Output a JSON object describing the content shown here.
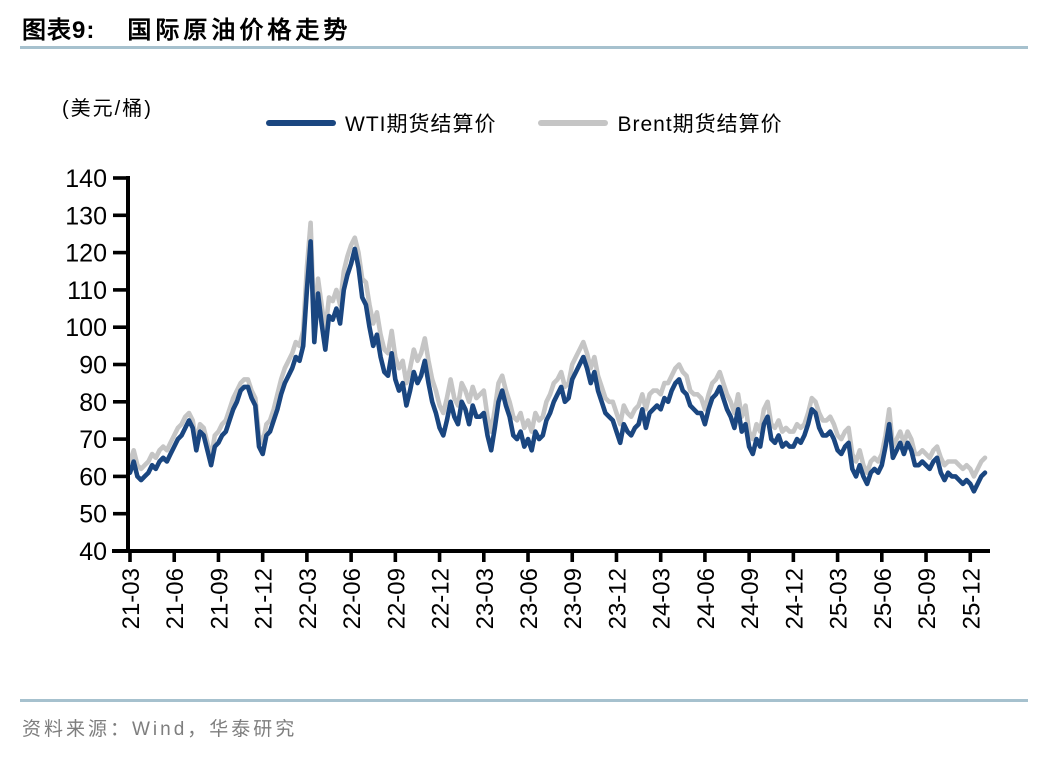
{
  "header": {
    "chart_label": "图表9:",
    "chart_title": "国际原油价格走势"
  },
  "footer": {
    "source": "资料来源：Wind，华泰研究"
  },
  "colors": {
    "accent_rule": "#A6C1CE",
    "axis": "#000000",
    "source_text": "#7E7E7E",
    "wti_line": "#1A4680",
    "brent_line": "#C5C5C5"
  },
  "chart_data": {
    "type": "line",
    "title": "国际原油价格走势",
    "unit_label": "(美元/桶)",
    "legend_position": "top",
    "grid": false,
    "ylim": [
      40,
      140
    ],
    "y_tick_labels": [
      "140",
      "130",
      "120",
      "110",
      "100",
      "90",
      "80",
      "70",
      "60",
      "50",
      "40"
    ],
    "x_tick_labels": [
      "21-03",
      "21-06",
      "21-09",
      "21-12",
      "22-03",
      "22-06",
      "22-09",
      "22-12",
      "23-03",
      "23-06",
      "23-09",
      "23-12",
      "24-03",
      "24-06",
      "24-09",
      "24-12",
      "25-03",
      "25-06",
      "25-09",
      "25-12"
    ],
    "x_start": "2021-03",
    "points_per_month": 4,
    "series": [
      {
        "name": "WTI期货结算价",
        "color": "#1A4680",
        "values": [
          61,
          64,
          60,
          59,
          60,
          61,
          63,
          62,
          64,
          65,
          64,
          66,
          68,
          70,
          71,
          73,
          75,
          73,
          67,
          72,
          71,
          67,
          63,
          68,
          69,
          71,
          72,
          75,
          78,
          80,
          83,
          84,
          84,
          81,
          79,
          68,
          66,
          71,
          72,
          75,
          78,
          82,
          85,
          87,
          89,
          92,
          91,
          95,
          110,
          123,
          96,
          109,
          101,
          94,
          103,
          102,
          105,
          101,
          110,
          114,
          117,
          121,
          116,
          108,
          106,
          100,
          95,
          98,
          92,
          88,
          87,
          93,
          86,
          83,
          85,
          79,
          83,
          88,
          85,
          87,
          91,
          85,
          80,
          77,
          73,
          71,
          75,
          80,
          76,
          74,
          80,
          78,
          74,
          79,
          76,
          76,
          77,
          71,
          67,
          73,
          80,
          83,
          79,
          76,
          71,
          70,
          72,
          68,
          70,
          67,
          72,
          70,
          71,
          75,
          77,
          80,
          82,
          84,
          80,
          81,
          86,
          88,
          90,
          92,
          89,
          85,
          88,
          83,
          80,
          77,
          76,
          75,
          72,
          69,
          74,
          72,
          71,
          73,
          74,
          78,
          73,
          77,
          78,
          79,
          78,
          81,
          80,
          83,
          85,
          86,
          83,
          82,
          79,
          78,
          77,
          77,
          74,
          78,
          81,
          82,
          84,
          81,
          78,
          76,
          73,
          78,
          72,
          74,
          68,
          66,
          70,
          68,
          74,
          76,
          70,
          69,
          71,
          68,
          69,
          68,
          68,
          70,
          69,
          71,
          74,
          78,
          77,
          73,
          71,
          71,
          72,
          70,
          67,
          66,
          68,
          69,
          62,
          60,
          63,
          60,
          58,
          61,
          62,
          61,
          63,
          68,
          74,
          65,
          67,
          69,
          66,
          69,
          67,
          63,
          63,
          64,
          63,
          62,
          64,
          65,
          61,
          59,
          61,
          60,
          60,
          59,
          58,
          59,
          58,
          56,
          58,
          60,
          61
        ]
      },
      {
        "name": "Brent期货结算价",
        "color": "#C5C5C5",
        "values": [
          64,
          67,
          63,
          62,
          63,
          64,
          66,
          65,
          67,
          68,
          67,
          69,
          71,
          73,
          74,
          76,
          77,
          75,
          69,
          74,
          73,
          69,
          65,
          71,
          72,
          74,
          75,
          78,
          81,
          83,
          85,
          86,
          86,
          83,
          81,
          71,
          69,
          74,
          75,
          78,
          82,
          86,
          89,
          91,
          93,
          96,
          95,
          99,
          116,
          128,
          100,
          113,
          106,
          99,
          108,
          107,
          110,
          106,
          115,
          119,
          122,
          124,
          120,
          113,
          112,
          106,
          101,
          104,
          98,
          94,
          93,
          99,
          92,
          89,
          91,
          85,
          89,
          94,
          91,
          93,
          97,
          91,
          86,
          83,
          79,
          77,
          81,
          86,
          81,
          79,
          85,
          83,
          80,
          84,
          81,
          82,
          83,
          76,
          72,
          78,
          85,
          87,
          83,
          80,
          76,
          75,
          77,
          73,
          75,
          72,
          77,
          75,
          76,
          80,
          82,
          85,
          86,
          88,
          84,
          85,
          90,
          92,
          94,
          96,
          93,
          89,
          92,
          87,
          84,
          81,
          80,
          80,
          77,
          74,
          79,
          77,
          76,
          78,
          79,
          82,
          78,
          82,
          83,
          83,
          82,
          85,
          85,
          87,
          89,
          90,
          88,
          87,
          83,
          82,
          82,
          81,
          78,
          82,
          85,
          86,
          88,
          85,
          82,
          80,
          77,
          82,
          76,
          79,
          72,
          70,
          74,
          72,
          78,
          80,
          74,
          73,
          75,
          72,
          73,
          72,
          72,
          74,
          73,
          74,
          77,
          81,
          80,
          77,
          75,
          75,
          76,
          74,
          71,
          70,
          72,
          73,
          66,
          64,
          67,
          63,
          61,
          64,
          65,
          64,
          66,
          71,
          78,
          68,
          70,
          72,
          69,
          72,
          70,
          66,
          66,
          67,
          66,
          65,
          67,
          68,
          65,
          63,
          64,
          64,
          64,
          63,
          62,
          63,
          62,
          60,
          62,
          64,
          65
        ]
      }
    ]
  }
}
